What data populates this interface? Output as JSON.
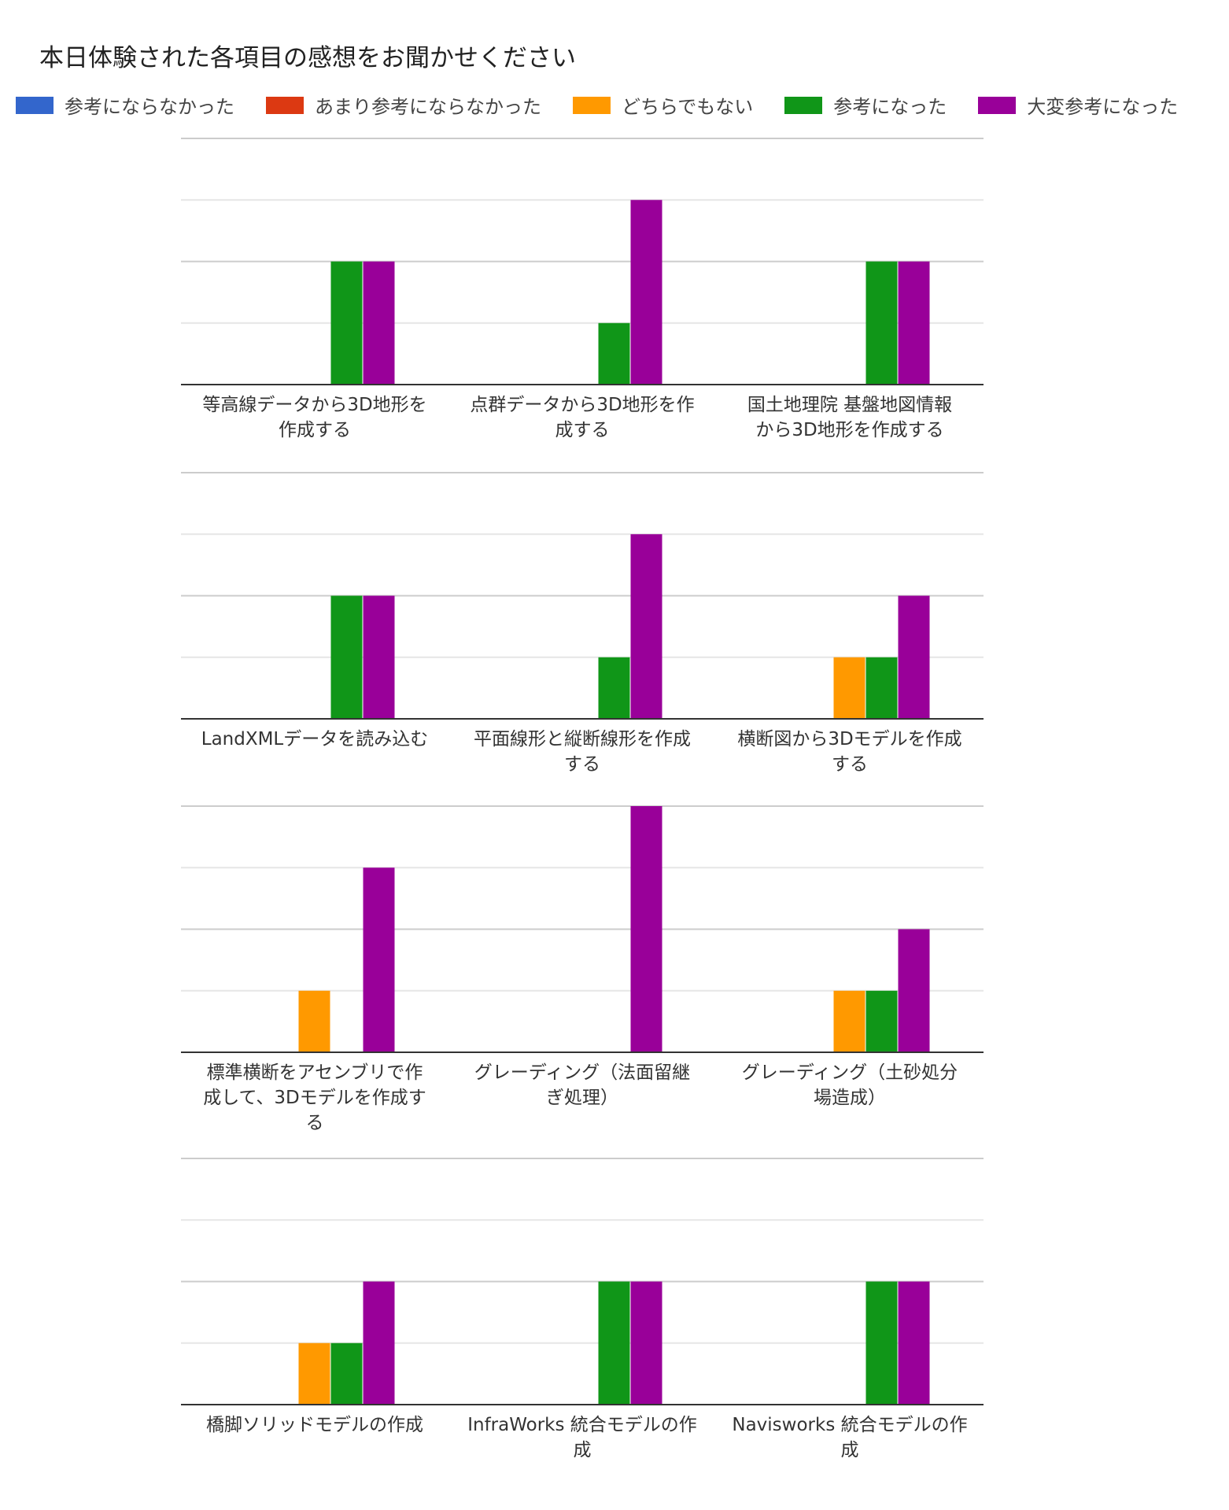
{
  "chart_data": {
    "type": "bar",
    "title": "本日体験された各項目の感想をお聞かせください",
    "legend_position": "top",
    "grid": true,
    "ylim": [
      0,
      4
    ],
    "series": [
      {
        "name": "参考にならなかった",
        "color": "#3366cc"
      },
      {
        "name": "あまり参考にならなかった",
        "color": "#dc3912"
      },
      {
        "name": "どちらでもない",
        "color": "#ff9900"
      },
      {
        "name": "参考になった",
        "color": "#109618"
      },
      {
        "name": "大変参考になった",
        "color": "#990099"
      }
    ],
    "panels": [
      {
        "categories": [
          {
            "label": [
              "等高線データから3D地形を",
              "作成する"
            ],
            "values": [
              0,
              0,
              0,
              2,
              2
            ]
          },
          {
            "label": [
              "点群データから3D地形を作",
              "成する"
            ],
            "values": [
              0,
              0,
              0,
              1,
              3
            ]
          },
          {
            "label": [
              "国土地理院 基盤地図情報",
              "から3D地形を作成する"
            ],
            "values": [
              0,
              0,
              0,
              2,
              2
            ]
          }
        ]
      },
      {
        "categories": [
          {
            "label": [
              "LandXMLデータを読み込む"
            ],
            "values": [
              0,
              0,
              0,
              2,
              2
            ]
          },
          {
            "label": [
              "平面線形と縦断線形を作成",
              "する"
            ],
            "values": [
              0,
              0,
              0,
              1,
              3
            ]
          },
          {
            "label": [
              "横断図から3Dモデルを作成",
              "する"
            ],
            "values": [
              0,
              0,
              1,
              1,
              2
            ]
          }
        ]
      },
      {
        "categories": [
          {
            "label": [
              "標準横断をアセンブリで作",
              "成して、3Dモデルを作成す",
              "る"
            ],
            "values": [
              0,
              0,
              1,
              0,
              3
            ]
          },
          {
            "label": [
              "グレーディング（法面留継",
              "ぎ処理）"
            ],
            "values": [
              0,
              0,
              0,
              0,
              4
            ]
          },
          {
            "label": [
              "グレーディング（土砂処分",
              "場造成）"
            ],
            "values": [
              0,
              0,
              1,
              1,
              2
            ]
          }
        ]
      },
      {
        "categories": [
          {
            "label": [
              "橋脚ソリッドモデルの作成"
            ],
            "values": [
              0,
              0,
              1,
              1,
              2
            ]
          },
          {
            "label": [
              "InfraWorks 統合モデルの作",
              "成"
            ],
            "values": [
              0,
              0,
              0,
              2,
              2
            ]
          },
          {
            "label": [
              "Navisworks 統合モデルの作",
              "成"
            ],
            "values": [
              0,
              0,
              0,
              2,
              2
            ]
          }
        ]
      }
    ]
  }
}
